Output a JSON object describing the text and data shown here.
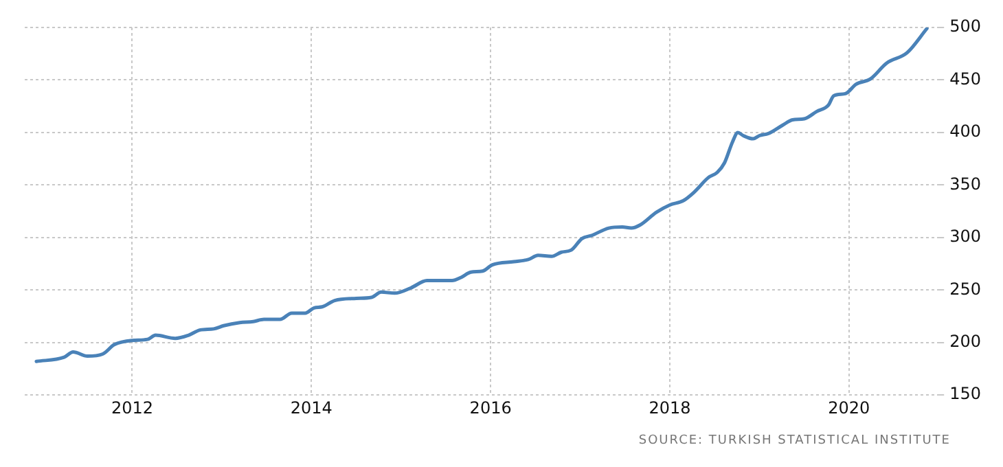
{
  "chart_data": {
    "type": "line",
    "x": [
      2010.93,
      2011.24,
      2011.34,
      2011.5,
      2011.67,
      2011.8,
      2012.0,
      2012.17,
      2012.26,
      2012.48,
      2012.63,
      2012.76,
      2012.91,
      2013.02,
      2013.2,
      2013.35,
      2013.47,
      2013.65,
      2013.78,
      2013.93,
      2014.03,
      2014.12,
      2014.26,
      2014.5,
      2014.67,
      2014.78,
      2014.93,
      2015.11,
      2015.29,
      2015.4,
      2015.57,
      2015.67,
      2015.78,
      2015.91,
      2016.02,
      2016.26,
      2016.42,
      2016.53,
      2016.68,
      2016.79,
      2016.9,
      2017.02,
      2017.13,
      2017.32,
      2017.47,
      2017.57,
      2017.67,
      2017.85,
      2018.0,
      2018.15,
      2018.27,
      2018.43,
      2018.53,
      2018.61,
      2018.7,
      2018.76,
      2018.82,
      2018.93,
      2019.0,
      2019.1,
      2019.26,
      2019.37,
      2019.5,
      2019.64,
      2019.77,
      2019.83,
      2019.96,
      2020.08,
      2020.24,
      2020.42,
      2020.65,
      2020.87
    ],
    "series": [
      {
        "color": "#4a82b8",
        "values": [
          182,
          186,
          191,
          187,
          189,
          198,
          202,
          203,
          207,
          204,
          207,
          212,
          213,
          216,
          219,
          220,
          222,
          222,
          228,
          228,
          233,
          234,
          240,
          242,
          243,
          248,
          247,
          252,
          259,
          259,
          259,
          262,
          267,
          268,
          274,
          277,
          279,
          283,
          282,
          286,
          288,
          299,
          302,
          309,
          310,
          309,
          312,
          324,
          331,
          335,
          343,
          357,
          362,
          371,
          391,
          400,
          397,
          394,
          397,
          399,
          407,
          412,
          413,
          420,
          426,
          435,
          437,
          446,
          451,
          466,
          476,
          499
        ]
      }
    ],
    "xlim": [
      2010.8,
      2021
    ],
    "xticks": [
      2012,
      2014,
      2016,
      2018,
      2020
    ],
    "ylim": [
      150,
      500
    ],
    "yticks": [
      150,
      200,
      250,
      300,
      350,
      400,
      450,
      500
    ],
    "grid": true,
    "legend": false,
    "marker": "none",
    "line_style": "solid",
    "annotations": [
      "SOURCE: TURKISH STATISTICAL INSTITUTE"
    ]
  }
}
